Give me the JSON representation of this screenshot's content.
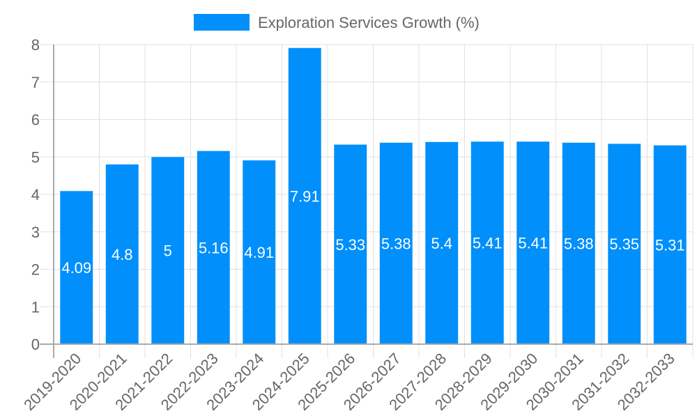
{
  "chart_data": {
    "type": "bar",
    "title": "",
    "xlabel": "",
    "ylabel": "",
    "ylim": [
      0,
      8
    ],
    "yticks": [
      0,
      1,
      2,
      3,
      4,
      5,
      6,
      7,
      8
    ],
    "grid": true,
    "legend_position": "top",
    "categories": [
      "2019-2020",
      "2020-2021",
      "2021-2022",
      "2022-2023",
      "2023-2024",
      "2024-2025",
      "2025-2026",
      "2026-2027",
      "2027-2028",
      "2028-2029",
      "2029-2030",
      "2030-2031",
      "2031-2032",
      "2032-2033"
    ],
    "series": [
      {
        "name": "Exploration Services Growth (%)",
        "color": "#008ffb",
        "values": [
          4.09,
          4.8,
          5,
          5.16,
          4.91,
          7.91,
          5.33,
          5.38,
          5.4,
          5.41,
          5.41,
          5.38,
          5.35,
          5.31
        ]
      }
    ]
  },
  "legend": {
    "label": "Exploration Services Growth (%)",
    "color": "#008ffb"
  }
}
